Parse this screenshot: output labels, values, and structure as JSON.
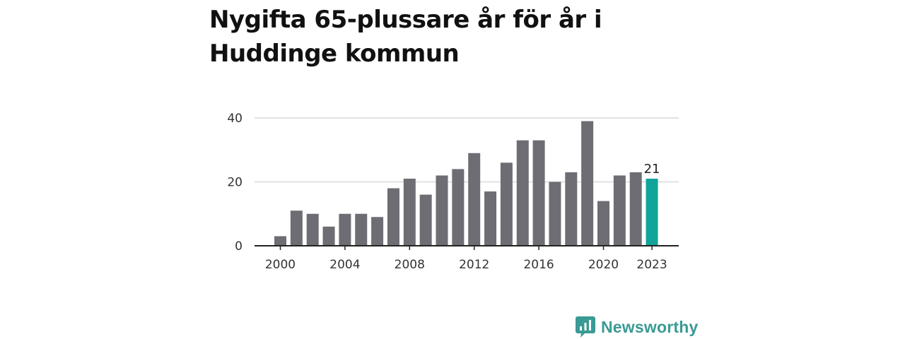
{
  "title": "Nygifta 65-plussare år för år i Huddinge kommun",
  "brand": {
    "name": "Newsworthy",
    "color": "#3a9a94",
    "icon": "chart-speech-bubble-icon"
  },
  "colors": {
    "bar": "#6e6d73",
    "highlight": "#10a49a",
    "grid": "#d9d9d9",
    "axis": "#222222"
  },
  "chart_data": {
    "type": "bar",
    "title": "Nygifta 65-plussare år för år i Huddinge kommun",
    "xlabel": "",
    "ylabel": "",
    "ylim": [
      0,
      40
    ],
    "yticks": [
      0,
      20,
      40
    ],
    "grid": true,
    "categories": [
      2000,
      2001,
      2002,
      2003,
      2004,
      2005,
      2006,
      2007,
      2008,
      2009,
      2010,
      2011,
      2012,
      2013,
      2014,
      2015,
      2016,
      2017,
      2018,
      2019,
      2020,
      2021,
      2022,
      2023
    ],
    "values": [
      3,
      11,
      10,
      6,
      10,
      10,
      9,
      18,
      21,
      16,
      22,
      24,
      29,
      17,
      26,
      33,
      33,
      20,
      23,
      39,
      14,
      22,
      23,
      21
    ],
    "xticks": [
      2000,
      2004,
      2008,
      2012,
      2016,
      2020,
      2023
    ],
    "highlight": {
      "category": 2023,
      "label": "21"
    }
  }
}
